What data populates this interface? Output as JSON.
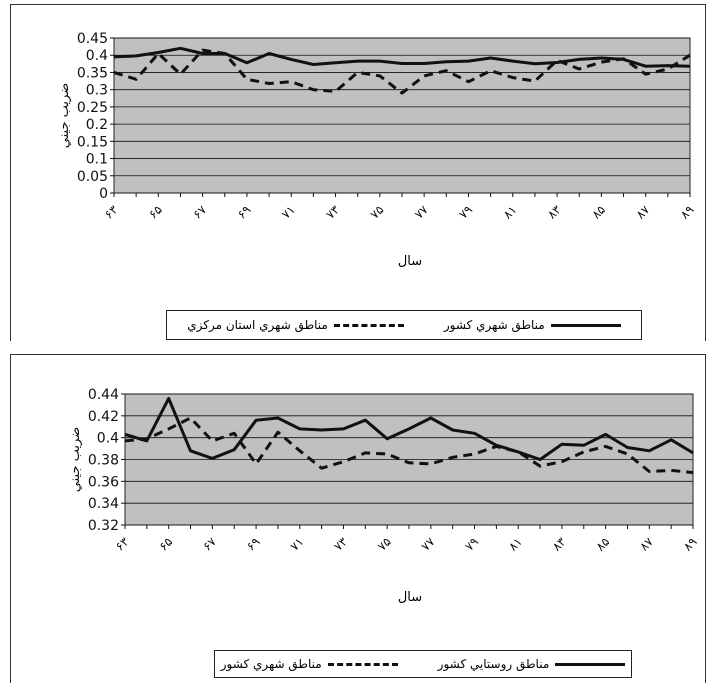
{
  "chart_data": [
    {
      "type": "line",
      "ylabel": "ضريب جيني",
      "xlabel": "سال",
      "x_ticks_shown": [
        "۶۳",
        "۶۵",
        "۶۷",
        "۶۹",
        "۷۱",
        "۷۳",
        "۷۵",
        "۷۷",
        "۷۹",
        "۸۱",
        "۸۳",
        "۸۵",
        "۸۷",
        "۸۹"
      ],
      "x": [
        63,
        64,
        65,
        66,
        67,
        68,
        69,
        70,
        71,
        72,
        73,
        74,
        75,
        76,
        77,
        78,
        79,
        80,
        81,
        82,
        83,
        84,
        85,
        86,
        87,
        88,
        89
      ],
      "ylim": [
        0,
        0.45
      ],
      "yticks": [
        "0",
        "0.05",
        "0.1",
        "0.15",
        "0.2",
        "0.25",
        "0.3",
        "0.35",
        "0.4",
        "0.45"
      ],
      "grid": true,
      "legend_placement": "bottom",
      "series": [
        {
          "name": "مناطق شهري كشور",
          "style": "solid",
          "values": [
            0.395,
            0.398,
            0.408,
            0.42,
            0.405,
            0.405,
            0.378,
            0.405,
            0.388,
            0.373,
            0.378,
            0.383,
            0.383,
            0.376,
            0.376,
            0.381,
            0.383,
            0.392,
            0.383,
            0.375,
            0.379,
            0.388,
            0.392,
            0.388,
            0.368,
            0.37,
            0.368
          ]
        },
        {
          "name": "مناطق شهري استان مركزي",
          "style": "dashed",
          "values": [
            0.35,
            0.33,
            0.405,
            0.345,
            0.415,
            0.405,
            0.33,
            0.318,
            0.323,
            0.3,
            0.295,
            0.35,
            0.34,
            0.29,
            0.34,
            0.355,
            0.323,
            0.355,
            0.335,
            0.325,
            0.385,
            0.36,
            0.38,
            0.39,
            0.345,
            0.36,
            0.4
          ]
        }
      ]
    },
    {
      "type": "line",
      "ylabel": "ضريب جيني",
      "xlabel": "سال",
      "x_ticks_shown": [
        "۶۳",
        "۶۵",
        "۶۷",
        "۶۹",
        "۷۱",
        "۷۳",
        "۷۵",
        "۷۷",
        "۷۹",
        "۸۱",
        "۸۳",
        "۸۵",
        "۸۷",
        "۸۹"
      ],
      "x": [
        63,
        64,
        65,
        66,
        67,
        68,
        69,
        70,
        71,
        72,
        73,
        74,
        75,
        76,
        77,
        78,
        79,
        80,
        81,
        82,
        83,
        84,
        85,
        86,
        87,
        88,
        89
      ],
      "ylim": [
        0.32,
        0.44
      ],
      "yticks": [
        "0.32",
        "0.34",
        "0.36",
        "0.38",
        "0.4",
        "0.42",
        "0.44"
      ],
      "grid": true,
      "legend_placement": "bottom",
      "series": [
        {
          "name": "مناطق روستايي كشور",
          "style": "solid",
          "values": [
            0.403,
            0.397,
            0.436,
            0.388,
            0.381,
            0.389,
            0.416,
            0.418,
            0.408,
            0.407,
            0.408,
            0.416,
            0.399,
            0.408,
            0.418,
            0.407,
            0.404,
            0.393,
            0.387,
            0.38,
            0.394,
            0.393,
            0.403,
            0.391,
            0.388,
            0.398,
            0.386
          ]
        },
        {
          "name": "مناطق شهري كشور",
          "style": "dashed",
          "values": [
            0.397,
            0.399,
            0.408,
            0.418,
            0.397,
            0.404,
            0.376,
            0.405,
            0.388,
            0.372,
            0.378,
            0.386,
            0.385,
            0.377,
            0.376,
            0.382,
            0.385,
            0.392,
            0.387,
            0.374,
            0.378,
            0.387,
            0.392,
            0.385,
            0.369,
            0.37,
            0.368
          ]
        }
      ]
    }
  ]
}
